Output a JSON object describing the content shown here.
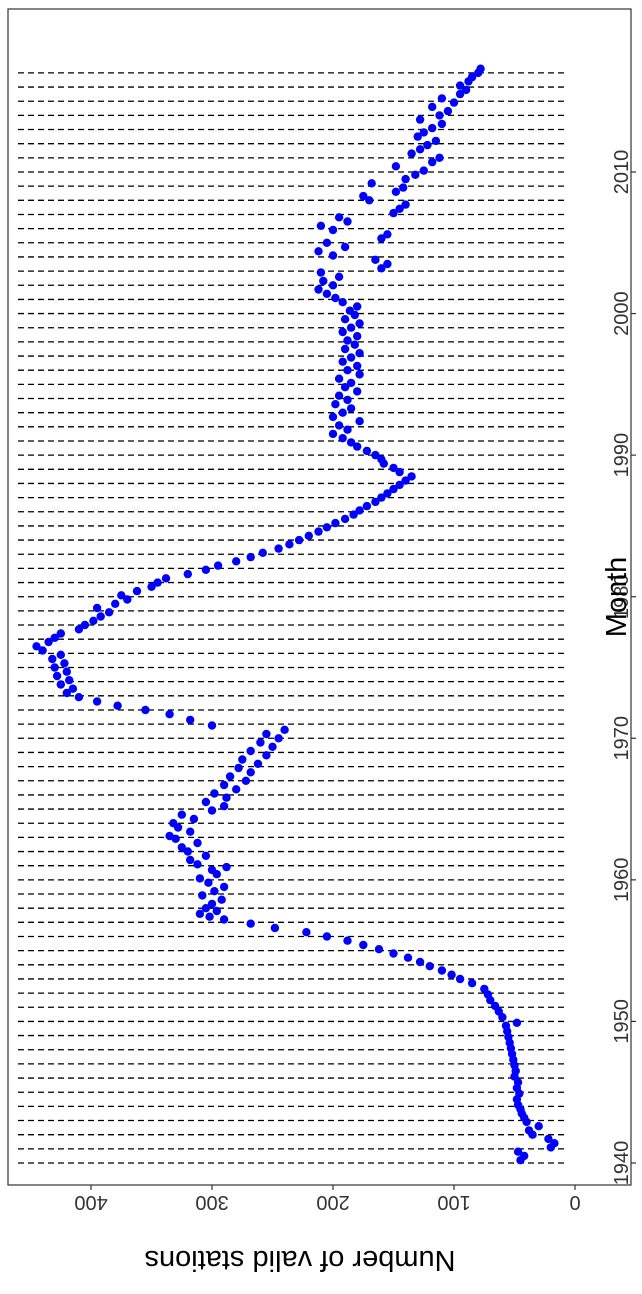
{
  "chart_data": {
    "type": "scatter",
    "orientation": "rotated-90-clockwise",
    "title": "",
    "xlabel": "Month",
    "ylabel": "Number of valid stations",
    "xlim": [
      1937,
      2019.5
    ],
    "ylim": [
      0,
      470
    ],
    "x_ticks": [
      1940,
      1950,
      1960,
      1970,
      1980,
      1990,
      2000,
      2010
    ],
    "x_tick_labels": [
      "1940",
      "1950",
      "1960",
      "1970",
      "1980",
      "1990",
      "2000",
      "2010"
    ],
    "y_ticks": [
      0,
      100,
      200,
      300,
      400
    ],
    "y_tick_labels": [
      "0",
      "100",
      "200",
      "300",
      "400"
    ],
    "grid": false,
    "point_color": "#0000ff",
    "vline_color": "#000000",
    "vertical_dashed_lines_at_year_start": [
      1940,
      1941,
      1942,
      1943,
      1944,
      1945,
      1946,
      1947,
      1948,
      1949,
      1950,
      1951,
      1952,
      1953,
      1954,
      1955,
      1956,
      1957,
      1958,
      1959,
      1960,
      1961,
      1962,
      1963,
      1964,
      1965,
      1966,
      1967,
      1968,
      1969,
      1970,
      1971,
      1972,
      1973,
      1974,
      1975,
      1976,
      1977,
      1978,
      1979,
      1980,
      1981,
      1982,
      1983,
      1984,
      1985,
      1986,
      1987,
      1988,
      1989,
      1990,
      1991,
      1992,
      1993,
      1994,
      1995,
      1996,
      1997,
      1998,
      1999,
      2000,
      2001,
      2002,
      2003,
      2004,
      2005,
      2006,
      2007,
      2008,
      2009,
      2010,
      2011,
      2012,
      2013,
      2014,
      2015,
      2016,
      2017
    ],
    "series": [
      {
        "points": [
          [
            1940.2,
            45
          ],
          [
            1940.5,
            42
          ],
          [
            1940.8,
            47
          ],
          [
            1941.1,
            20
          ],
          [
            1941.4,
            17
          ],
          [
            1941.7,
            22
          ],
          [
            1942.0,
            35
          ],
          [
            1942.3,
            38
          ],
          [
            1942.6,
            30
          ],
          [
            1942.9,
            40
          ],
          [
            1943.2,
            42
          ],
          [
            1943.5,
            44
          ],
          [
            1943.8,
            45
          ],
          [
            1944.1,
            47
          ],
          [
            1944.5,
            48
          ],
          [
            1944.9,
            46
          ],
          [
            1945.3,
            48
          ],
          [
            1945.7,
            47
          ],
          [
            1946.1,
            50
          ],
          [
            1946.5,
            49
          ],
          [
            1946.9,
            50
          ],
          [
            1947.3,
            51
          ],
          [
            1947.7,
            52
          ],
          [
            1948.1,
            53
          ],
          [
            1948.5,
            54
          ],
          [
            1948.9,
            55
          ],
          [
            1949.3,
            56
          ],
          [
            1949.7,
            57
          ],
          [
            1949.9,
            48
          ],
          [
            1950.3,
            60
          ],
          [
            1950.7,
            63
          ],
          [
            1951.1,
            66
          ],
          [
            1951.5,
            70
          ],
          [
            1951.9,
            72
          ],
          [
            1952.3,
            75
          ],
          [
            1952.7,
            85
          ],
          [
            1953.0,
            95
          ],
          [
            1953.3,
            102
          ],
          [
            1953.6,
            110
          ],
          [
            1953.9,
            120
          ],
          [
            1954.2,
            128
          ],
          [
            1954.5,
            138
          ],
          [
            1954.8,
            150
          ],
          [
            1955.1,
            162
          ],
          [
            1955.4,
            175
          ],
          [
            1955.7,
            188
          ],
          [
            1956.0,
            205
          ],
          [
            1956.3,
            222
          ],
          [
            1956.6,
            248
          ],
          [
            1956.9,
            268
          ],
          [
            1957.2,
            290
          ],
          [
            1957.4,
            302
          ],
          [
            1957.6,
            310
          ],
          [
            1957.8,
            296
          ],
          [
            1958.0,
            305
          ],
          [
            1958.3,
            300
          ],
          [
            1958.6,
            292
          ],
          [
            1958.9,
            308
          ],
          [
            1959.2,
            298
          ],
          [
            1959.5,
            290
          ],
          [
            1959.8,
            303
          ],
          [
            1960.1,
            310
          ],
          [
            1960.4,
            296
          ],
          [
            1960.7,
            300
          ],
          [
            1960.9,
            288
          ],
          [
            1961.1,
            312
          ],
          [
            1961.4,
            318
          ],
          [
            1961.7,
            305
          ],
          [
            1962.0,
            320
          ],
          [
            1962.3,
            325
          ],
          [
            1962.6,
            312
          ],
          [
            1962.9,
            330
          ],
          [
            1963.1,
            335
          ],
          [
            1963.4,
            318
          ],
          [
            1963.7,
            328
          ],
          [
            1964.0,
            332
          ],
          [
            1964.3,
            315
          ],
          [
            1964.6,
            325
          ],
          [
            1964.9,
            300
          ],
          [
            1965.2,
            290
          ],
          [
            1965.5,
            305
          ],
          [
            1965.8,
            288
          ],
          [
            1966.1,
            298
          ],
          [
            1966.4,
            280
          ],
          [
            1966.7,
            290
          ],
          [
            1967.0,
            272
          ],
          [
            1967.3,
            285
          ],
          [
            1967.6,
            268
          ],
          [
            1967.9,
            278
          ],
          [
            1968.2,
            262
          ],
          [
            1968.5,
            275
          ],
          [
            1968.8,
            255
          ],
          [
            1969.1,
            268
          ],
          [
            1969.4,
            250
          ],
          [
            1969.7,
            260
          ],
          [
            1970.0,
            245
          ],
          [
            1970.3,
            255
          ],
          [
            1970.6,
            240
          ],
          [
            1970.9,
            300
          ],
          [
            1971.3,
            318
          ],
          [
            1971.7,
            335
          ],
          [
            1972.0,
            355
          ],
          [
            1972.3,
            378
          ],
          [
            1972.6,
            395
          ],
          [
            1972.9,
            410
          ],
          [
            1973.2,
            420
          ],
          [
            1973.5,
            415
          ],
          [
            1973.8,
            425
          ],
          [
            1974.1,
            418
          ],
          [
            1974.4,
            428
          ],
          [
            1974.7,
            420
          ],
          [
            1975.0,
            430
          ],
          [
            1975.3,
            422
          ],
          [
            1975.6,
            432
          ],
          [
            1975.9,
            425
          ],
          [
            1976.2,
            440
          ],
          [
            1976.5,
            445
          ],
          [
            1976.8,
            435
          ],
          [
            1977.1,
            430
          ],
          [
            1977.4,
            425
          ],
          [
            1977.7,
            410
          ],
          [
            1978.0,
            405
          ],
          [
            1978.3,
            398
          ],
          [
            1978.6,
            392
          ],
          [
            1978.9,
            385
          ],
          [
            1979.2,
            395
          ],
          [
            1979.5,
            380
          ],
          [
            1979.8,
            370
          ],
          [
            1980.1,
            375
          ],
          [
            1980.4,
            362
          ],
          [
            1980.7,
            350
          ],
          [
            1981.0,
            345
          ],
          [
            1981.3,
            338
          ],
          [
            1981.6,
            320
          ],
          [
            1981.9,
            305
          ],
          [
            1982.2,
            295
          ],
          [
            1982.5,
            280
          ],
          [
            1982.8,
            268
          ],
          [
            1983.1,
            258
          ],
          [
            1983.4,
            245
          ],
          [
            1983.7,
            236
          ],
          [
            1984.0,
            228
          ],
          [
            1984.3,
            220
          ],
          [
            1984.6,
            212
          ],
          [
            1984.9,
            205
          ],
          [
            1985.2,
            198
          ],
          [
            1985.5,
            190
          ],
          [
            1985.8,
            183
          ],
          [
            1986.1,
            178
          ],
          [
            1986.4,
            172
          ],
          [
            1986.7,
            165
          ],
          [
            1987.0,
            160
          ],
          [
            1987.3,
            155
          ],
          [
            1987.6,
            150
          ],
          [
            1987.9,
            145
          ],
          [
            1988.2,
            140
          ],
          [
            1988.5,
            135
          ],
          [
            1988.8,
            145
          ],
          [
            1989.1,
            150
          ],
          [
            1989.4,
            158
          ],
          [
            1989.7,
            160
          ],
          [
            1990.0,
            165
          ],
          [
            1990.3,
            172
          ],
          [
            1990.6,
            180
          ],
          [
            1990.9,
            185
          ],
          [
            1991.2,
            192
          ],
          [
            1991.5,
            200
          ],
          [
            1991.8,
            188
          ],
          [
            1992.1,
            195
          ],
          [
            1992.4,
            178
          ],
          [
            1992.7,
            200
          ],
          [
            1993.0,
            192
          ],
          [
            1993.3,
            185
          ],
          [
            1993.6,
            198
          ],
          [
            1993.9,
            188
          ],
          [
            1994.2,
            195
          ],
          [
            1994.5,
            180
          ],
          [
            1994.8,
            190
          ],
          [
            1995.1,
            185
          ],
          [
            1995.4,
            195
          ],
          [
            1995.7,
            178
          ],
          [
            1996.0,
            188
          ],
          [
            1996.3,
            180
          ],
          [
            1996.6,
            192
          ],
          [
            1996.9,
            185
          ],
          [
            1997.2,
            178
          ],
          [
            1997.5,
            190
          ],
          [
            1997.8,
            182
          ],
          [
            1998.1,
            188
          ],
          [
            1998.4,
            180
          ],
          [
            1998.7,
            192
          ],
          [
            1999.0,
            185
          ],
          [
            1999.3,
            178
          ],
          [
            1999.6,
            190
          ],
          [
            1999.9,
            182
          ],
          [
            2000.2,
            186
          ],
          [
            2000.5,
            180
          ],
          [
            2000.8,
            192
          ],
          [
            2001.1,
            198
          ],
          [
            2001.4,
            205
          ],
          [
            2001.7,
            212
          ],
          [
            2002.0,
            200
          ],
          [
            2002.3,
            208
          ],
          [
            2002.6,
            195
          ],
          [
            2002.9,
            210
          ],
          [
            2003.2,
            160
          ],
          [
            2003.5,
            155
          ],
          [
            2003.8,
            165
          ],
          [
            2004.1,
            200
          ],
          [
            2004.4,
            212
          ],
          [
            2004.7,
            190
          ],
          [
            2005.0,
            205
          ],
          [
            2005.3,
            160
          ],
          [
            2005.6,
            155
          ],
          [
            2005.9,
            200
          ],
          [
            2006.2,
            210
          ],
          [
            2006.5,
            188
          ],
          [
            2006.8,
            195
          ],
          [
            2007.1,
            150
          ],
          [
            2007.4,
            145
          ],
          [
            2007.7,
            140
          ],
          [
            2008.0,
            170
          ],
          [
            2008.3,
            175
          ],
          [
            2008.6,
            148
          ],
          [
            2008.9,
            142
          ],
          [
            2009.2,
            168
          ],
          [
            2009.5,
            140
          ],
          [
            2009.8,
            132
          ],
          [
            2010.1,
            125
          ],
          [
            2010.4,
            148
          ],
          [
            2010.7,
            118
          ],
          [
            2011.0,
            112
          ],
          [
            2011.3,
            135
          ],
          [
            2011.6,
            128
          ],
          [
            2011.9,
            122
          ],
          [
            2012.2,
            115
          ],
          [
            2012.5,
            130
          ],
          [
            2012.8,
            125
          ],
          [
            2013.1,
            118
          ],
          [
            2013.4,
            110
          ],
          [
            2013.7,
            128
          ],
          [
            2014.0,
            112
          ],
          [
            2014.3,
            105
          ],
          [
            2014.6,
            118
          ],
          [
            2014.9,
            100
          ],
          [
            2015.2,
            110
          ],
          [
            2015.5,
            95
          ],
          [
            2015.8,
            90
          ],
          [
            2016.1,
            95
          ],
          [
            2016.4,
            88
          ],
          [
            2016.7,
            85
          ],
          [
            2017.0,
            80
          ],
          [
            2017.3,
            78
          ]
        ]
      }
    ]
  }
}
